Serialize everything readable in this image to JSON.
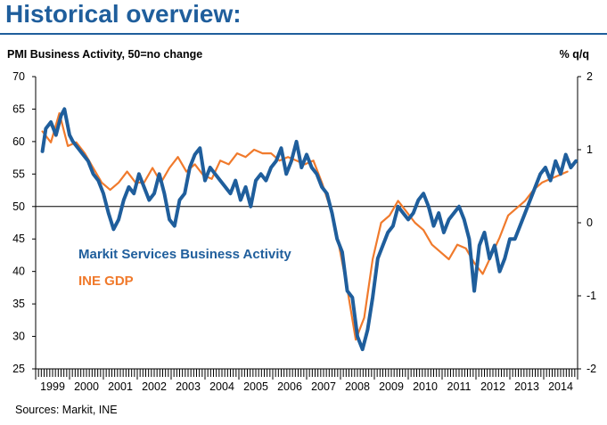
{
  "header": {
    "title": "Historical overview:"
  },
  "footer": {
    "source": "Sources: Markit, INE"
  },
  "colors": {
    "title": "#1f5e9c",
    "pmi": "#1f5e9c",
    "gdp": "#f07a2c",
    "text": "#000000"
  },
  "chart_data": {
    "type": "line",
    "ylabel_left": "PMI Business Activity, 50=no change",
    "ylabel_right": "% q/q",
    "ylim_left": [
      25,
      70
    ],
    "yticks_left": [
      25,
      30,
      35,
      40,
      45,
      50,
      55,
      60,
      65,
      70
    ],
    "ylim_right": [
      -2,
      2
    ],
    "yticks_right": [
      -2,
      -1,
      0,
      1,
      2
    ],
    "reference_line": 50,
    "x_range": [
      1999,
      2015
    ],
    "x_categories": [
      "1999",
      "2000",
      "2001",
      "2002",
      "2003",
      "2004",
      "2005",
      "2006",
      "2007",
      "2008",
      "2009",
      "2010",
      "2011",
      "2012",
      "2013",
      "2014"
    ],
    "grid": false,
    "series": [
      {
        "name": "Markit Services Business Activity",
        "axis": "left",
        "x": [
          1999.2,
          1999.3,
          1999.45,
          1999.6,
          1999.75,
          1999.85,
          2000.0,
          2000.1,
          2000.25,
          2000.4,
          2000.55,
          2000.7,
          2000.85,
          2001.0,
          2001.15,
          2001.3,
          2001.45,
          2001.6,
          2001.75,
          2001.9,
          2002.05,
          2002.2,
          2002.35,
          2002.5,
          2002.65,
          2002.8,
          2002.95,
          2003.1,
          2003.25,
          2003.4,
          2003.55,
          2003.7,
          2003.85,
          2004.0,
          2004.15,
          2004.3,
          2004.45,
          2004.6,
          2004.75,
          2004.9,
          2005.05,
          2005.2,
          2005.35,
          2005.5,
          2005.65,
          2005.8,
          2005.95,
          2006.1,
          2006.25,
          2006.4,
          2006.55,
          2006.7,
          2006.85,
          2007.0,
          2007.15,
          2007.3,
          2007.45,
          2007.6,
          2007.75,
          2007.9,
          2008.05,
          2008.2,
          2008.35,
          2008.5,
          2008.65,
          2008.8,
          2008.95,
          2009.1,
          2009.25,
          2009.4,
          2009.55,
          2009.7,
          2009.85,
          2010.0,
          2010.15,
          2010.3,
          2010.45,
          2010.6,
          2010.75,
          2010.9,
          2011.05,
          2011.2,
          2011.35,
          2011.5,
          2011.65,
          2011.8,
          2011.95,
          2012.1,
          2012.25,
          2012.4,
          2012.55,
          2012.7,
          2012.85,
          2013.0,
          2013.15,
          2013.3,
          2013.45,
          2013.6,
          2013.75,
          2013.9,
          2014.05,
          2014.2,
          2014.35,
          2014.5,
          2014.65,
          2014.8,
          2014.95
        ],
        "values": [
          58.5,
          62,
          63,
          61,
          64,
          65,
          61,
          60,
          59,
          58,
          57,
          55,
          54,
          52,
          49,
          46.5,
          48,
          51,
          53,
          52,
          55,
          53,
          51,
          52,
          55,
          52,
          48,
          47,
          51,
          52,
          56,
          58,
          59,
          54,
          56,
          55,
          54,
          53,
          52,
          54,
          51,
          53,
          50,
          54,
          55,
          54,
          56,
          57,
          59,
          55,
          57,
          60,
          56,
          58,
          56,
          55,
          53,
          52,
          49,
          45,
          43,
          37,
          36,
          30,
          28,
          31,
          36,
          42,
          44,
          46,
          47,
          50,
          49,
          48,
          49,
          51,
          52,
          50,
          47,
          49,
          46,
          48,
          49,
          50,
          48,
          45,
          37,
          44,
          46,
          42,
          44,
          40,
          42,
          45,
          45,
          47,
          49,
          51,
          53,
          55,
          56,
          54,
          57,
          55,
          58,
          56,
          57
        ]
      },
      {
        "name": "INE GDP",
        "axis": "right",
        "x": [
          1999.2,
          1999.45,
          1999.7,
          1999.95,
          2000.2,
          2000.45,
          2000.7,
          2000.95,
          2001.2,
          2001.45,
          2001.7,
          2001.95,
          2002.2,
          2002.45,
          2002.7,
          2002.95,
          2003.2,
          2003.45,
          2003.7,
          2003.95,
          2004.2,
          2004.45,
          2004.7,
          2004.95,
          2005.2,
          2005.45,
          2005.7,
          2005.95,
          2006.2,
          2006.45,
          2006.7,
          2006.95,
          2007.2,
          2007.45,
          2007.7,
          2007.95,
          2008.2,
          2008.45,
          2008.7,
          2008.95,
          2009.2,
          2009.45,
          2009.7,
          2009.95,
          2010.2,
          2010.45,
          2010.7,
          2010.95,
          2011.2,
          2011.45,
          2011.7,
          2011.95,
          2012.2,
          2012.45,
          2012.7,
          2012.95,
          2013.2,
          2013.45,
          2013.7,
          2013.95,
          2014.2,
          2014.45,
          2014.7
        ],
        "values": [
          1.25,
          1.1,
          1.5,
          1.05,
          1.1,
          0.95,
          0.75,
          0.55,
          0.45,
          0.55,
          0.7,
          0.55,
          0.55,
          0.75,
          0.55,
          0.75,
          0.9,
          0.7,
          0.8,
          0.65,
          0.6,
          0.85,
          0.8,
          0.95,
          0.9,
          1.0,
          0.95,
          0.95,
          0.85,
          0.9,
          0.85,
          0.8,
          0.85,
          0.55,
          0.2,
          -0.3,
          -0.9,
          -1.6,
          -1.3,
          -0.5,
          0.0,
          0.1,
          0.3,
          0.15,
          0.0,
          -0.1,
          -0.3,
          -0.4,
          -0.5,
          -0.3,
          -0.35,
          -0.55,
          -0.7,
          -0.45,
          -0.2,
          0.1,
          0.2,
          0.3,
          0.45,
          0.55,
          0.6,
          0.65,
          0.7
        ]
      }
    ]
  }
}
